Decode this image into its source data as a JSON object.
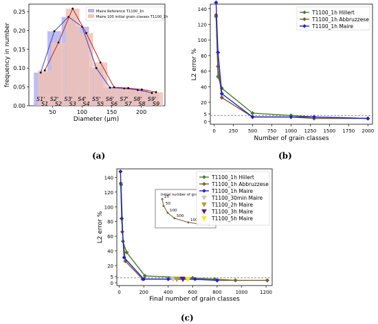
{
  "captions": {
    "a": "(a)",
    "b": "(b)",
    "c": "(c)"
  },
  "chart_data": [
    {
      "type": "bar",
      "xlabel": "Diameter (μm)",
      "ylabel": "frequency in number",
      "xlim": [
        10,
        240
      ],
      "ylim": [
        0,
        0.27
      ],
      "xticks": [
        "50",
        "100",
        "150",
        "200"
      ],
      "yticks": [
        "0.00",
        "0.05",
        "0.10",
        "0.15",
        "0.20",
        "0.25"
      ],
      "legend_placement": "top-right",
      "bin_labels_top": [
        "S1'",
        "S2'",
        "S3'",
        "S4'",
        "S5'",
        "S6'",
        "S7'",
        "S8'",
        "S9'"
      ],
      "bin_labels_bottom": [
        "S1",
        "S2",
        "S3",
        "S4",
        "S5",
        "S6",
        "S7",
        "S8",
        "S9"
      ],
      "series": [
        {
          "name": "Maire Reference T1100_1h",
          "color": "#b3b3ee",
          "x": [
            30,
            53,
            77,
            100,
            124,
            147,
            171,
            194,
            218
          ],
          "values": [
            0.088,
            0.198,
            0.236,
            0.21,
            0.1,
            0.048,
            0.046,
            0.042,
            0.034
          ]
        },
        {
          "name": "Maire 100 initial grain classes T1100_1h",
          "color": "#f0c2b6",
          "x": [
            37,
            60,
            84,
            107,
            131,
            154,
            178,
            201,
            225
          ],
          "values": [
            0.094,
            0.168,
            0.258,
            0.193,
            0.115,
            0.049,
            0.047,
            0.043,
            0.036
          ]
        }
      ]
    },
    {
      "type": "line",
      "xlabel": "Number of grain classes",
      "ylabel": "L2 error %",
      "xlim": [
        -50,
        2060
      ],
      "ylim": [
        -3,
        146
      ],
      "xticks": [
        "0",
        "250",
        "500",
        "750",
        "1000",
        "1250",
        "1500",
        "1750",
        "2000"
      ],
      "yticks": [
        "0",
        "5",
        "20",
        "40",
        "60",
        "80",
        "100",
        "120",
        "140"
      ],
      "reference_line_y": 4,
      "legend_placement": "top-right",
      "series": [
        {
          "name": "T1100_1h Hillert",
          "color": "#4a7a2c",
          "marker": "diamond",
          "x": [
            25,
            50,
            100,
            500,
            1000,
            1300,
            2000
          ],
          "values": [
            130,
            53,
            38,
            6,
            4,
            3,
            2
          ]
        },
        {
          "name": "T1100_1h Abbruzzese",
          "color": "#7a5a2a",
          "marker": "diamond",
          "x": [
            25,
            50,
            100,
            500,
            1000,
            1300,
            2000
          ],
          "values": [
            132,
            66,
            26,
            3,
            3,
            2,
            2
          ]
        },
        {
          "name": "T1100_1h Maire",
          "color": "#2020d0",
          "marker": "diamond",
          "x": [
            25,
            50,
            100,
            500,
            1000,
            1300,
            2000
          ],
          "values": [
            148,
            84,
            31,
            3,
            3,
            3,
            2
          ]
        }
      ]
    },
    {
      "type": "line",
      "xlabel": "Final number of grain classes",
      "ylabel": "L2 error %",
      "xlim": [
        -20,
        1250
      ],
      "ylim": [
        -3,
        146
      ],
      "xticks": [
        "0",
        "200",
        "400",
        "600",
        "800",
        "1000",
        "1200"
      ],
      "yticks": [
        "0",
        "5",
        "20",
        "40",
        "60",
        "80",
        "100",
        "120",
        "140"
      ],
      "reference_line_y": 4,
      "legend_placement": "top-right",
      "inset": {
        "title": "Initial number of grains indicator",
        "labels": [
          "25",
          "50",
          "100",
          "500",
          "1000",
          "1300",
          "2000"
        ]
      },
      "series": [
        {
          "name": "T1100_1h Hillert",
          "color": "#4a7a2c",
          "marker": "diamond",
          "x": [
            15,
            30,
            60,
            210,
            600,
            780,
            950
          ],
          "values": [
            130,
            53,
            38,
            6,
            4,
            3,
            2
          ]
        },
        {
          "name": "T1100_1h Abbruzzese",
          "color": "#7a5a2a",
          "marker": "diamond",
          "x": [
            12,
            25,
            50,
            190,
            560,
            800,
            1210
          ],
          "values": [
            132,
            66,
            26,
            3,
            3,
            2,
            2
          ]
        },
        {
          "name": "T1100_1h Maire",
          "color": "#2020d0",
          "marker": "diamond",
          "x": [
            10,
            20,
            40,
            200,
            400,
            620,
            800
          ],
          "values": [
            148,
            84,
            31,
            3,
            3,
            3,
            2
          ]
        },
        {
          "name": "T1100_30min Maire",
          "color": "#c8c8c8",
          "marker": "triangle-down",
          "x": [
            440
          ],
          "values": [
            3
          ]
        },
        {
          "name": "T1100_2h Maire",
          "color": "#b0a020",
          "marker": "triangle-down",
          "x": [
            470
          ],
          "values": [
            3
          ]
        },
        {
          "name": "T1100_3h Maire",
          "color": "#5a1a80",
          "marker": "triangle-down",
          "x": [
            520
          ],
          "values": [
            3
          ]
        },
        {
          "name": "T1100_5h Maire",
          "color": "#f0f000",
          "marker": "triangle-down",
          "x": [
            560
          ],
          "values": [
            3
          ]
        }
      ]
    }
  ]
}
